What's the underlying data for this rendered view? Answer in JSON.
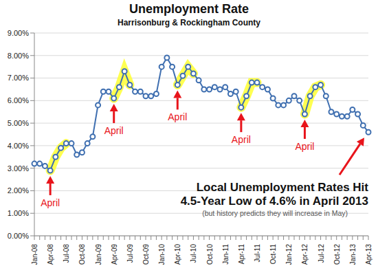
{
  "chart_data": {
    "type": "line",
    "title": "Unemployment Rate",
    "subtitle": "Harrisonburg & Rockingham County",
    "categories": [
      "Jan-08",
      null,
      null,
      "Apr-08",
      null,
      null,
      "Jul-08",
      null,
      null,
      "Oct-08",
      null,
      null,
      "Jan-09",
      null,
      null,
      "Apr-09",
      null,
      null,
      "Jul-09",
      null,
      null,
      "Oct-09",
      null,
      null,
      "Jan-10",
      null,
      null,
      "Apr-10",
      null,
      null,
      "Jul-10",
      null,
      null,
      "Oct-10",
      null,
      null,
      "Jan-11",
      null,
      null,
      "Apr-11",
      null,
      null,
      "Jul-11",
      null,
      null,
      "Oct-11",
      null,
      null,
      "Jan-12",
      null,
      null,
      "Apr-12",
      null,
      null,
      "Jul-12",
      null,
      null,
      "Oct-12",
      null,
      null,
      "Jan-13",
      null,
      null,
      "Apr-13"
    ],
    "values": [
      3.2,
      3.2,
      3.1,
      2.9,
      3.5,
      3.9,
      4.1,
      4.1,
      3.6,
      3.7,
      4.1,
      4.4,
      5.8,
      6.4,
      6.4,
      6.1,
      6.6,
      7.3,
      6.7,
      6.4,
      6.4,
      6.2,
      6.2,
      6.3,
      7.5,
      7.9,
      7.5,
      6.7,
      7.1,
      7.5,
      7.2,
      6.9,
      6.5,
      6.5,
      6.6,
      6.5,
      6.6,
      6.3,
      6.4,
      5.7,
      6.2,
      6.8,
      6.8,
      6.6,
      6.5,
      6.1,
      5.8,
      5.8,
      6.0,
      6.2,
      6.0,
      5.4,
      6.2,
      6.6,
      6.7,
      6.2,
      5.5,
      5.4,
      5.3,
      5.3,
      5.6,
      5.4,
      4.9,
      4.6
    ],
    "color": "#3f6fb0",
    "marker": "circle",
    "ylim": [
      0,
      9
    ],
    "yticks": [
      {
        "value": 0,
        "label": "0.00%"
      },
      {
        "value": 1,
        "label": "1.00%"
      },
      {
        "value": 2,
        "label": "2.00%"
      },
      {
        "value": 3,
        "label": "3.00%"
      },
      {
        "value": 4,
        "label": "4.00%"
      },
      {
        "value": 5,
        "label": "5.00%"
      },
      {
        "value": 6,
        "label": "6.00%"
      },
      {
        "value": 7,
        "label": "7.00%"
      },
      {
        "value": 8,
        "label": "8.00%"
      },
      {
        "value": 9,
        "label": "9.00%"
      }
    ],
    "grid": true,
    "annotations": [
      {
        "text": "April",
        "x": 3
      },
      {
        "text": "April",
        "x": 15
      },
      {
        "text": "April",
        "x": 27
      },
      {
        "text": "April",
        "x": 39
      },
      {
        "text": "April",
        "x": 51
      }
    ],
    "callout": {
      "text": [
        "Local Unemployment Rates Hit",
        "4.5-Year Low of 4.6% in April 2013"
      ],
      "subtext": "(but history predicts they will increase in May)",
      "x": 63
    }
  }
}
